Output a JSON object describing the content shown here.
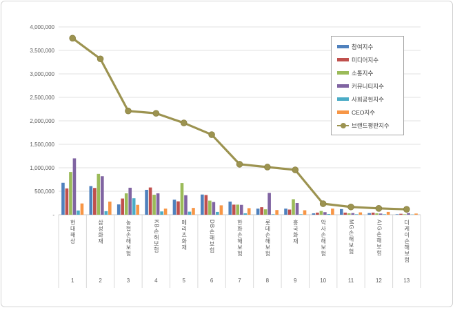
{
  "chart_data": {
    "type": "bar+line",
    "title": "",
    "xlabel": "",
    "ylabel": "",
    "ylim": [
      0,
      4000000
    ],
    "ytick_step": 500000,
    "yticks": [
      "4,000,000",
      "3,500,000",
      "3,000,000",
      "2,500,000",
      "2,000,000",
      "1,500,000",
      "1,000,000",
      "500,000",
      "-"
    ],
    "grid": true,
    "legend_position": "top-right",
    "categories": [
      "현대해상",
      "삼성화재",
      "농협손해보험",
      "KB손해보험",
      "메리츠화재",
      "DB손해보험",
      "한화손해보험",
      "롯데손해보험",
      "흥국화재",
      "악사손해보험",
      "MG손해보험",
      "AIG손해보험",
      "더케이손해보험"
    ],
    "ranks": [
      "1",
      "2",
      "3",
      "4",
      "5",
      "6",
      "7",
      "8",
      "9",
      "10",
      "11",
      "12",
      "13"
    ],
    "series": [
      {
        "name": "참여지수",
        "color": "#4F81BD",
        "values": [
          680000,
          610000,
          220000,
          530000,
          320000,
          430000,
          280000,
          130000,
          130000,
          30000,
          120000,
          35000,
          10000
        ]
      },
      {
        "name": "미디어지수",
        "color": "#C0504D",
        "values": [
          560000,
          570000,
          345000,
          580000,
          285000,
          420000,
          215000,
          160000,
          110000,
          45000,
          45000,
          45000,
          20000
        ]
      },
      {
        "name": "소통지수",
        "color": "#9BBB59",
        "values": [
          910000,
          870000,
          455000,
          425000,
          675000,
          300000,
          215000,
          115000,
          330000,
          80000,
          30000,
          30000,
          10000
        ]
      },
      {
        "name": "커뮤니티지수",
        "color": "#8064A2",
        "values": [
          1200000,
          820000,
          575000,
          455000,
          415000,
          270000,
          210000,
          465000,
          250000,
          55000,
          35000,
          25000,
          35000
        ]
      },
      {
        "name": "사회공헌지수",
        "color": "#4BACC6",
        "values": [
          90000,
          75000,
          350000,
          70000,
          65000,
          60000,
          30000,
          10000,
          10000,
          15000,
          10000,
          10000,
          5000
        ]
      },
      {
        "name": "CEO지수",
        "color": "#F79646",
        "values": [
          240000,
          280000,
          210000,
          130000,
          145000,
          200000,
          140000,
          100000,
          95000,
          130000,
          50000,
          60000,
          25000
        ]
      }
    ],
    "line_series": {
      "name": "브랜드평판지수",
      "color": "#9C9350",
      "marker_stroke": "#8A8142",
      "values": [
        3760000,
        3320000,
        2210000,
        2160000,
        1955000,
        1705000,
        1075000,
        1015000,
        955000,
        235000,
        165000,
        135000,
        115000
      ]
    }
  },
  "style": {
    "gridline_color": "#e2e2e2",
    "axis_color": "#c9c9c9",
    "separator_color": "#d9d9d9",
    "tick_text_color": "#595959"
  }
}
